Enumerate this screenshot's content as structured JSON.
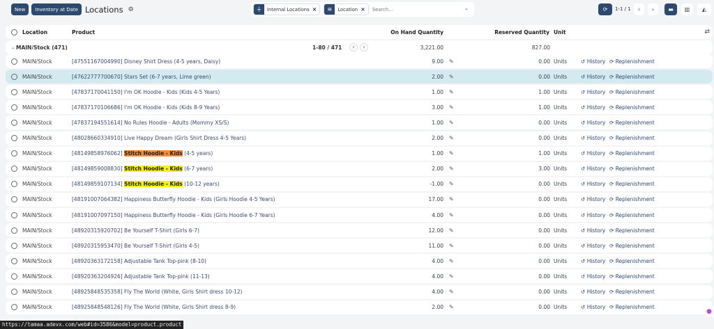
{
  "toolbar": {
    "new_label": "New",
    "inventory_label": "Inventory at Date",
    "title": "Locations",
    "pager": "1-1 / 1"
  },
  "search": {
    "facets": [
      {
        "icon": "filter-icon",
        "label": "Internal Locations"
      },
      {
        "icon": "layers-icon",
        "label": "Location"
      }
    ],
    "placeholder": "Search..."
  },
  "columns": {
    "location": "Location",
    "product": "Product",
    "on_hand": "On Hand Quantity",
    "reserved": "Reserved Quantity",
    "unit": "Unit"
  },
  "group": {
    "label": "MAIN/Stock (471)",
    "pager": "1-80 / 471",
    "on_hand": "3,221.00",
    "reserved": "827.00"
  },
  "actions": {
    "history": "History",
    "replenishment": "Replenishment"
  },
  "rows": [
    {
      "location": "MAIN/Stock",
      "code": "[47551167004990]",
      "name": "Disney Shirt Dress",
      "variant": "(4-5 years, Daisy)",
      "on_hand": "9.00",
      "reserved": "0.00",
      "unit": "Units"
    },
    {
      "location": "MAIN/Stock",
      "code": "[47622777700670]",
      "name": "Stars Set",
      "variant": "(6-7 years, Lime green)",
      "on_hand": "2.00",
      "reserved": "0.00",
      "unit": "Units",
      "selected": true
    },
    {
      "location": "MAIN/Stock",
      "code": "[47837170041150]",
      "name": "I'm OK Hoodie - Kids",
      "variant": "(Kids 4-5 Years)",
      "on_hand": "1.00",
      "reserved": "1.00",
      "unit": "Units"
    },
    {
      "location": "MAIN/Stock",
      "code": "[47837170106686]",
      "name": "I'm OK Hoodie - Kids",
      "variant": "(Kids 8-9 Years)",
      "on_hand": "3.00",
      "reserved": "1.00",
      "unit": "Units"
    },
    {
      "location": "MAIN/Stock",
      "code": "[47837194551614]",
      "name": "No Rules Hoodie - Adults",
      "variant": "(Mommy XS/S)",
      "on_hand": "1.00",
      "reserved": "0.00",
      "unit": "Units"
    },
    {
      "location": "MAIN/Stock",
      "code": "[48028660334910]",
      "name": "Live Happy Dream",
      "variant": "(Girls Shirt Dress 4-5 Years)",
      "on_hand": "2.00",
      "reserved": "0.00",
      "unit": "Units"
    },
    {
      "location": "MAIN/Stock",
      "code": "[48149858976062]",
      "name": "Stitch Hoodie - Kids",
      "variant": "(4-5 years)",
      "on_hand": "1.00",
      "reserved": "1.00",
      "unit": "Units",
      "highlight": "orange"
    },
    {
      "location": "MAIN/Stock",
      "code": "[48149859008830]",
      "name": "Stitch Hoodie - Kids",
      "variant": "(6-7 years)",
      "on_hand": "2.00",
      "reserved": "3.00",
      "unit": "Units",
      "highlight": "yellow"
    },
    {
      "location": "MAIN/Stock",
      "code": "[48149859107134]",
      "name": "Stitch Hoodie - Kids",
      "variant": "(10-12 years)",
      "on_hand": "-1.00",
      "reserved": "0.00",
      "unit": "Units",
      "highlight": "yellow"
    },
    {
      "location": "MAIN/Stock",
      "code": "[48191007064382]",
      "name": "Happiness Butterfly Hoodie - Kids",
      "variant": "(Girls Hoodie 4-5 Years)",
      "on_hand": "17.00",
      "reserved": "0.00",
      "unit": "Units"
    },
    {
      "location": "MAIN/Stock",
      "code": "[48191007097150]",
      "name": "Happiness Butterfly Hoodie - Kids",
      "variant": "(Girls Hoodie 6-7 Years)",
      "on_hand": "4.00",
      "reserved": "0.00",
      "unit": "Units"
    },
    {
      "location": "MAIN/Stock",
      "code": "[48920315920702]",
      "name": "Be Yourself T-Shirt",
      "variant": "(Girls 6-7)",
      "on_hand": "12.00",
      "reserved": "0.00",
      "unit": "Units"
    },
    {
      "location": "MAIN/Stock",
      "code": "[48920315953470]",
      "name": "Be Yourself T-Shirt",
      "variant": "(Girls 4-5)",
      "on_hand": "11.00",
      "reserved": "0.00",
      "unit": "Units"
    },
    {
      "location": "MAIN/Stock",
      "code": "[48920363172158]",
      "name": "Adjustable Tank Top-pink",
      "variant": "(8-10)",
      "on_hand": "4.00",
      "reserved": "0.00",
      "unit": "Units"
    },
    {
      "location": "MAIN/Stock",
      "code": "[48920363204926]",
      "name": "Adjustable Tank Top-pink",
      "variant": "(11-13)",
      "on_hand": "4.00",
      "reserved": "0.00",
      "unit": "Units"
    },
    {
      "location": "MAIN/Stock",
      "code": "[48925848535358]",
      "name": "Fly The World",
      "variant": "(White, Girls Shirt dress 10-12)",
      "on_hand": "4.00",
      "reserved": "0.00",
      "unit": "Units"
    },
    {
      "location": "MAIN/Stock",
      "code": "[48925848548126]",
      "name": "Fly The World",
      "variant": "(White, Girls Shirt dress 8-9)",
      "on_hand": "2.00",
      "reserved": "0.00",
      "unit": "Units"
    }
  ],
  "status_url": "https://tamaa.adevx.com/web#id=3586&model=product.product",
  "colors": {
    "primary": "#2d4a6e",
    "selected_row": "#d3ebf0",
    "highlight_orange": "#f28c38",
    "highlight_yellow": "#f5f016"
  }
}
